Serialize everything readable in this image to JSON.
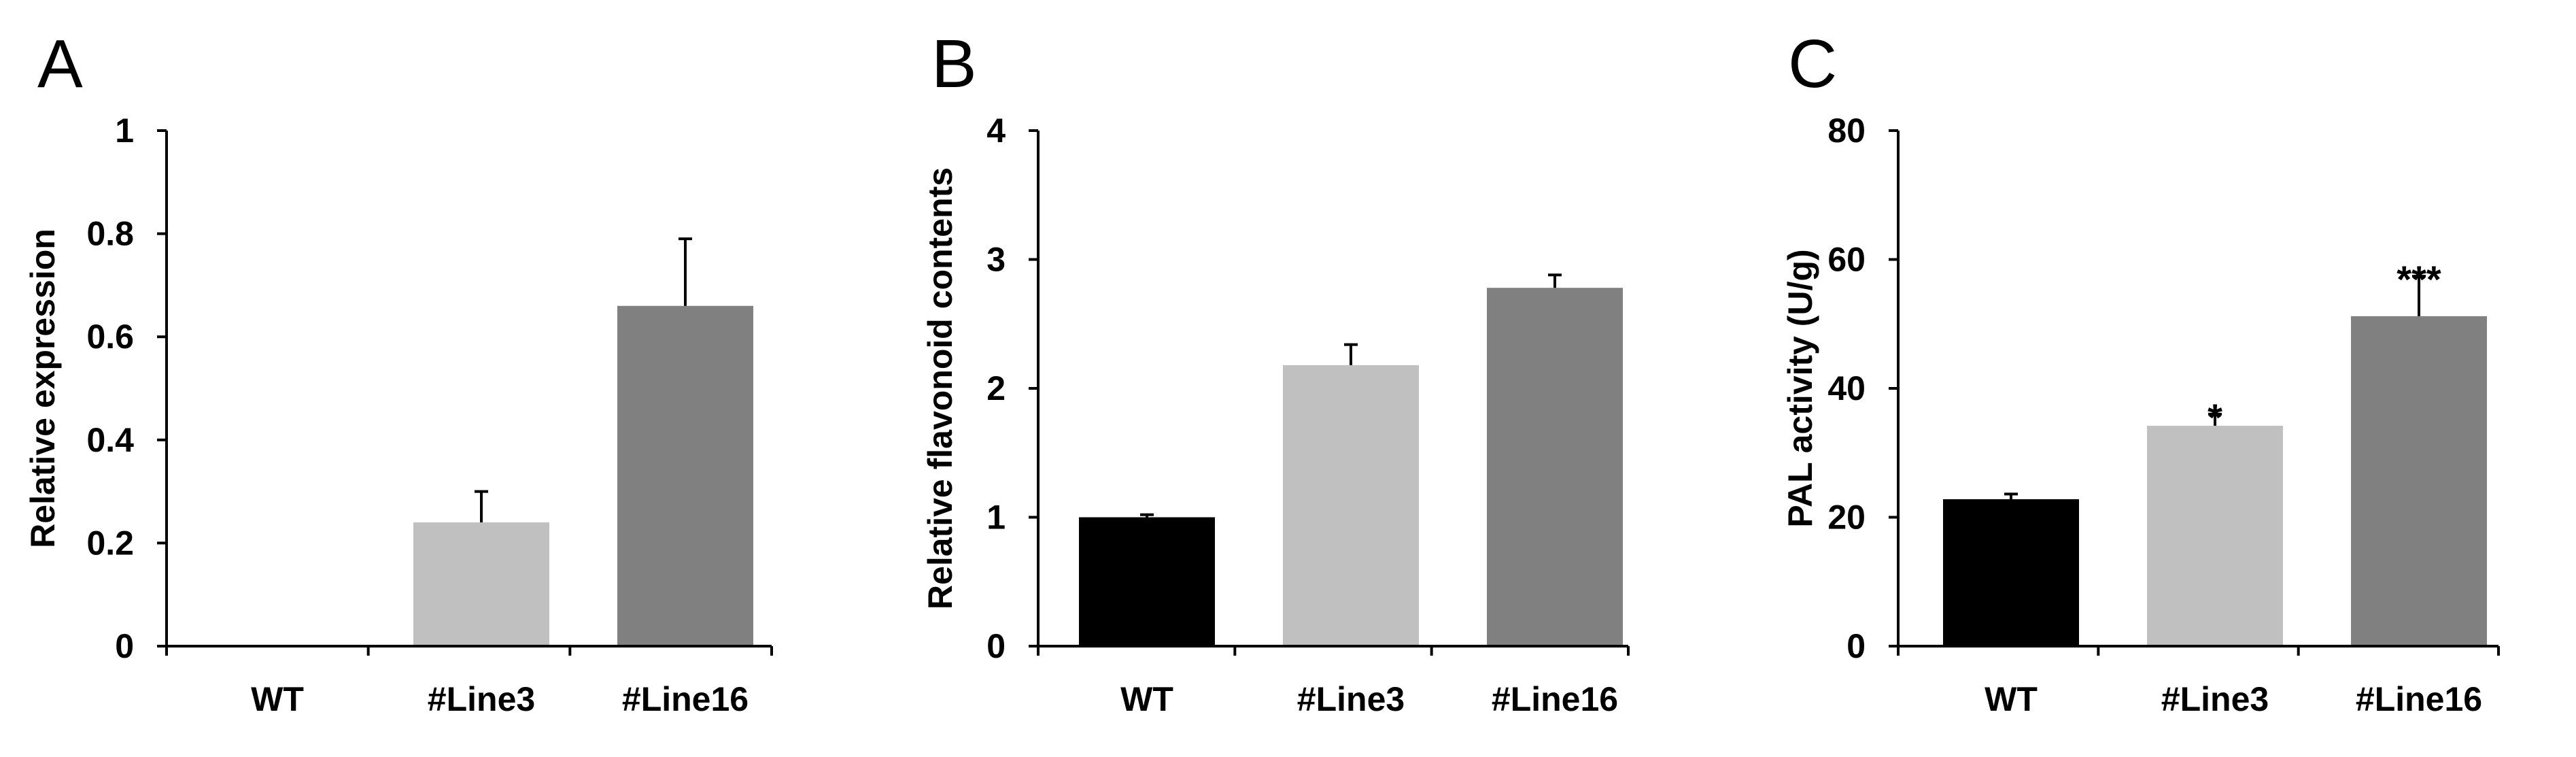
{
  "chart_data": [
    {
      "type": "bar",
      "panel_label": "A",
      "categories": [
        "WT",
        "#Line3",
        "#Line16"
      ],
      "values": [
        0,
        0.24,
        0.66
      ],
      "errors": [
        0,
        0.06,
        0.13
      ],
      "significance": [
        "",
        "",
        ""
      ],
      "bar_colors": [
        "#000000",
        "#c0c0c0",
        "#808080"
      ],
      "ylabel": "Relative expression",
      "xlabel": "",
      "ylim": [
        0,
        1
      ],
      "yticks": [
        0,
        0.2,
        0.4,
        0.6,
        0.8,
        1
      ],
      "ytick_labels": [
        "0",
        "0.2",
        "0.4",
        "0.6",
        "0.8",
        "1"
      ],
      "grid": false,
      "legend": "none"
    },
    {
      "type": "bar",
      "panel_label": "B",
      "categories": [
        "WT",
        "#Line3",
        "#Line16"
      ],
      "values": [
        1.0,
        2.18,
        2.78
      ],
      "errors": [
        0.02,
        0.16,
        0.1
      ],
      "significance": [
        "",
        "",
        ""
      ],
      "bar_colors": [
        "#000000",
        "#c0c0c0",
        "#808080"
      ],
      "ylabel": "Relative flavonoid contents",
      "xlabel": "",
      "ylim": [
        0,
        4
      ],
      "yticks": [
        0,
        1,
        2,
        3,
        4
      ],
      "ytick_labels": [
        "0",
        "1",
        "2",
        "3",
        "4"
      ],
      "grid": false,
      "legend": "none"
    },
    {
      "type": "bar",
      "panel_label": "C",
      "categories": [
        "WT",
        "#Line3",
        "#Line16"
      ],
      "values": [
        22.8,
        34.2,
        51.2
      ],
      "errors": [
        0.8,
        1.8,
        6.2
      ],
      "significance": [
        "",
        "*",
        "***"
      ],
      "bar_colors": [
        "#000000",
        "#c0c0c0",
        "#808080"
      ],
      "ylabel": "PAL activity (U/g)",
      "xlabel": "",
      "ylim": [
        0,
        80
      ],
      "yticks": [
        0,
        20,
        40,
        60,
        80
      ],
      "ytick_labels": [
        "0",
        "20",
        "40",
        "60",
        "80"
      ],
      "grid": false,
      "legend": "none"
    }
  ]
}
